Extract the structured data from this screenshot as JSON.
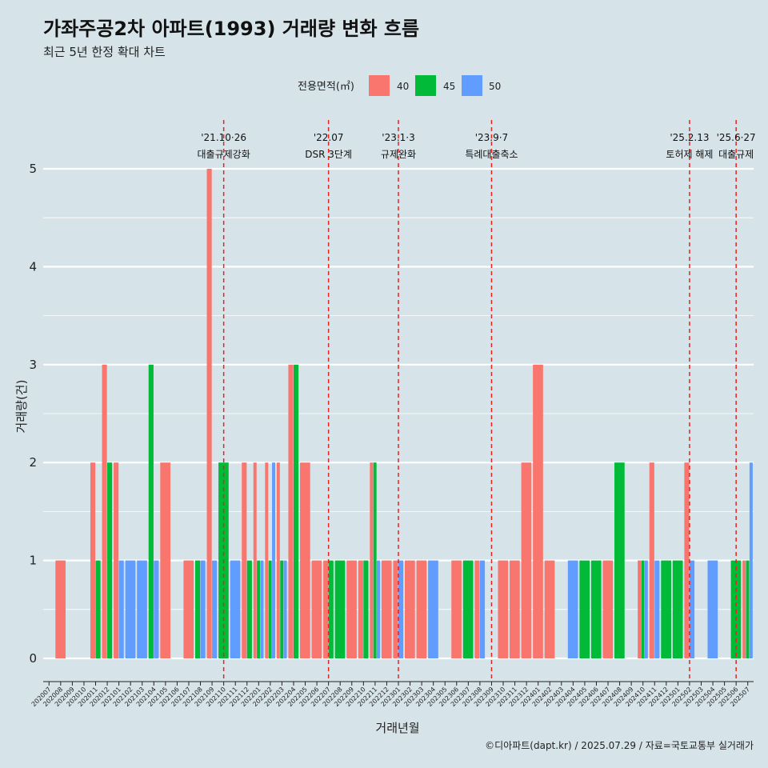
{
  "chart_data": {
    "type": "bar",
    "title": "가좌주공2차 아파트(1993) 거래량 변화 흐름",
    "subtitle": "최근 5년 한정 확대 차트",
    "xlabel": "거래년월",
    "ylabel": "거래량(건)",
    "ylim": [
      0,
      5
    ],
    "yticks": [
      "0",
      "1",
      "2",
      "3",
      "4",
      "5"
    ],
    "legend": {
      "title": "전용면적(㎡)",
      "position": "top",
      "items": [
        {
          "name": "40",
          "color": "#f8766d"
        },
        {
          "name": "45",
          "color": "#00ba38"
        },
        {
          "name": "50",
          "color": "#619cff"
        }
      ]
    },
    "categories": [
      "202007",
      "202008",
      "202009",
      "202010",
      "202011",
      "202012",
      "202101",
      "202102",
      "202103",
      "202104",
      "202105",
      "202106",
      "202107",
      "202108",
      "202109",
      "202110",
      "202111",
      "202112",
      "202201",
      "202202",
      "202203",
      "202204",
      "202205",
      "202206",
      "202207",
      "202208",
      "202209",
      "202210",
      "202211",
      "202212",
      "202301",
      "202302",
      "202303",
      "202304",
      "202305",
      "202306",
      "202307",
      "202308",
      "202309",
      "202310",
      "202311",
      "202312",
      "202401",
      "202402",
      "202403",
      "202404",
      "202405",
      "202406",
      "202407",
      "202408",
      "202409",
      "202410",
      "202411",
      "202412",
      "202501",
      "202502",
      "202503",
      "202504",
      "202505",
      "202506",
      "202507"
    ],
    "series": [
      {
        "name": "40",
        "values": [
          0,
          1,
          0,
          0,
          2,
          3,
          2,
          0,
          0,
          0,
          2,
          0,
          1,
          0,
          5,
          0,
          0,
          2,
          2,
          2,
          2,
          3,
          2,
          1,
          1,
          0,
          1,
          1,
          2,
          1,
          1,
          1,
          1,
          0,
          0,
          1,
          0,
          1,
          0,
          1,
          1,
          2,
          3,
          1,
          0,
          0,
          0,
          0,
          1,
          0,
          0,
          1,
          2,
          0,
          0,
          2,
          0,
          0,
          0,
          0,
          1
        ]
      },
      {
        "name": "45",
        "values": [
          0,
          0,
          0,
          0,
          1,
          2,
          0,
          0,
          0,
          3,
          0,
          0,
          0,
          1,
          0,
          2,
          0,
          1,
          1,
          1,
          1,
          3,
          0,
          0,
          1,
          1,
          0,
          1,
          2,
          0,
          0,
          0,
          0,
          0,
          0,
          0,
          1,
          0,
          0,
          0,
          0,
          0,
          0,
          0,
          0,
          0,
          1,
          1,
          0,
          2,
          0,
          1,
          0,
          1,
          1,
          0,
          0,
          0,
          0,
          1,
          1
        ]
      },
      {
        "name": "50",
        "values": [
          0,
          0,
          0,
          0,
          0,
          0,
          1,
          1,
          1,
          1,
          0,
          0,
          0,
          1,
          1,
          0,
          1,
          0,
          1,
          2,
          1,
          0,
          0,
          0,
          0,
          0,
          0,
          0,
          1,
          0,
          1,
          0,
          0,
          1,
          0,
          0,
          0,
          1,
          0,
          0,
          0,
          0,
          0,
          0,
          0,
          1,
          0,
          0,
          0,
          0,
          0,
          1,
          1,
          0,
          0,
          1,
          0,
          1,
          0,
          0,
          2
        ]
      }
    ],
    "events": [
      {
        "date": "'21.10·26",
        "label": "대출규제강화",
        "month": "202110"
      },
      {
        "date": "'22.07",
        "label": "DSR 3단계",
        "month": "202207"
      },
      {
        "date": "'23.1·3",
        "label": "규제완화",
        "month": "202301"
      },
      {
        "date": "'23.9·7",
        "label": "특례대출축소",
        "month": "202309"
      },
      {
        "date": "'25.2.13",
        "label": "토허제 해제",
        "month": "202502"
      },
      {
        "date": "'25.6·27",
        "label": "대출규제",
        "month": "202506"
      }
    ],
    "grid": true
  },
  "caption": "©디아파트(dapt.kr) / 2025.07.29 / 자료=국토교통부 실거래가"
}
